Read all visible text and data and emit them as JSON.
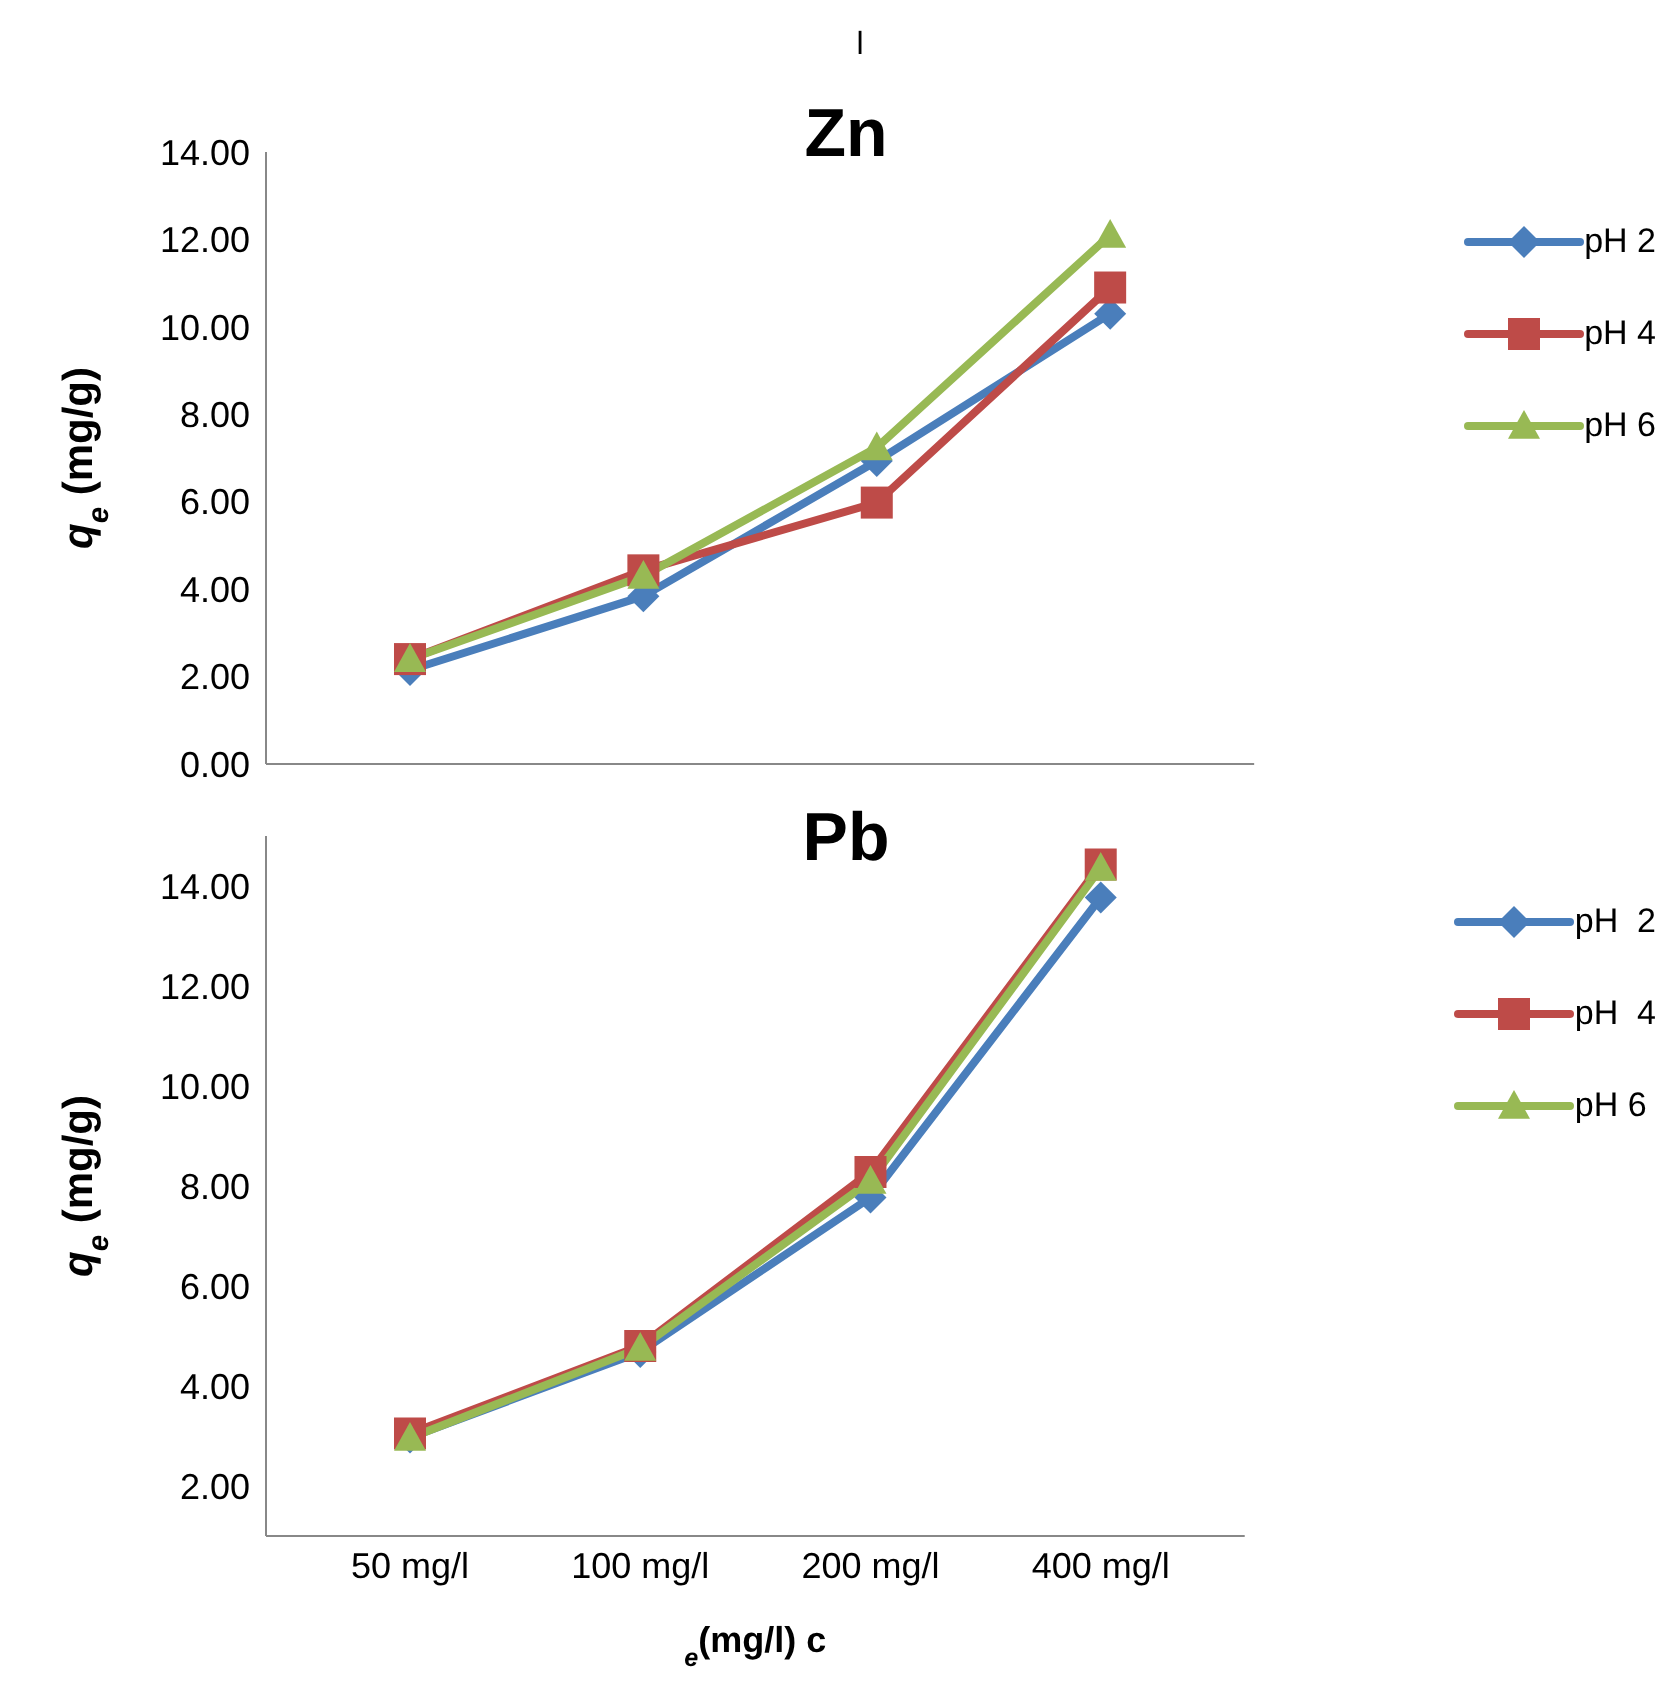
{
  "chart_data": [
    {
      "type": "line",
      "title": "Zn",
      "ylabel": "q$_{e}$ (mg/g)",
      "annotations": [
        "l"
      ],
      "categories": [
        null,
        null,
        null,
        null
      ],
      "series": [
        {
          "name": "pH 2",
          "color": "#4a7ebb",
          "marker": "diamond",
          "values": [
            2.15,
            3.84,
            6.93,
            10.3
          ]
        },
        {
          "name": "pH 4",
          "color": "#be4b48",
          "marker": "square",
          "values": [
            2.4,
            4.43,
            5.98,
            10.9
          ]
        },
        {
          "name": "pH 6",
          "color": "#98b954",
          "marker": "triangle",
          "values": [
            2.4,
            4.3,
            7.24,
            12.1
          ]
        }
      ],
      "ylim": [
        0,
        14
      ],
      "yticks": [
        {
          "value": 0,
          "label": "0.00"
        },
        {
          "value": 2,
          "label": "2.00"
        },
        {
          "value": 4,
          "label": "4.00"
        },
        {
          "value": 6,
          "label": "6.00"
        },
        {
          "value": 8,
          "label": "8.00"
        },
        {
          "value": 10,
          "label": "10.00"
        },
        {
          "value": 12,
          "label": "12.00"
        },
        {
          "value": 14,
          "label": "14.00"
        }
      ],
      "tick_labels": "y",
      "grid": false,
      "legend": "right"
    },
    {
      "type": "line",
      "title": "Pb",
      "ylabel": "q$_{e}$ (mg/g)",
      "xlabel": "$_{e}$(mg/l) c",
      "categories": [
        "50 mg/l",
        "100 mg/l",
        "200 mg/l",
        "400 mg/l"
      ],
      "series": [
        {
          "name": "pH  2",
          "color": "#4a7ebb",
          "marker": "diamond",
          "values": [
            2.97,
            4.68,
            7.77,
            13.77
          ]
        },
        {
          "name": "pH  4",
          "color": "#be4b48",
          "marker": "square",
          "values": [
            3.05,
            4.8,
            8.28,
            14.43
          ]
        },
        {
          "name": "pH 6",
          "color": "#98b954",
          "marker": "triangle",
          "values": [
            2.96,
            4.76,
            8.1,
            14.36
          ]
        }
      ],
      "ylim": [
        1,
        15
      ],
      "yticks": [
        {
          "value": 2,
          "label": "2.00"
        },
        {
          "value": 4,
          "label": "4.00"
        },
        {
          "value": 6,
          "label": "6.00"
        },
        {
          "value": 8,
          "label": "8.00"
        },
        {
          "value": 10,
          "label": "10.00"
        },
        {
          "value": 12,
          "label": "12.00"
        },
        {
          "value": 14,
          "label": "14.00"
        }
      ],
      "grid": false,
      "legend": "right"
    }
  ]
}
